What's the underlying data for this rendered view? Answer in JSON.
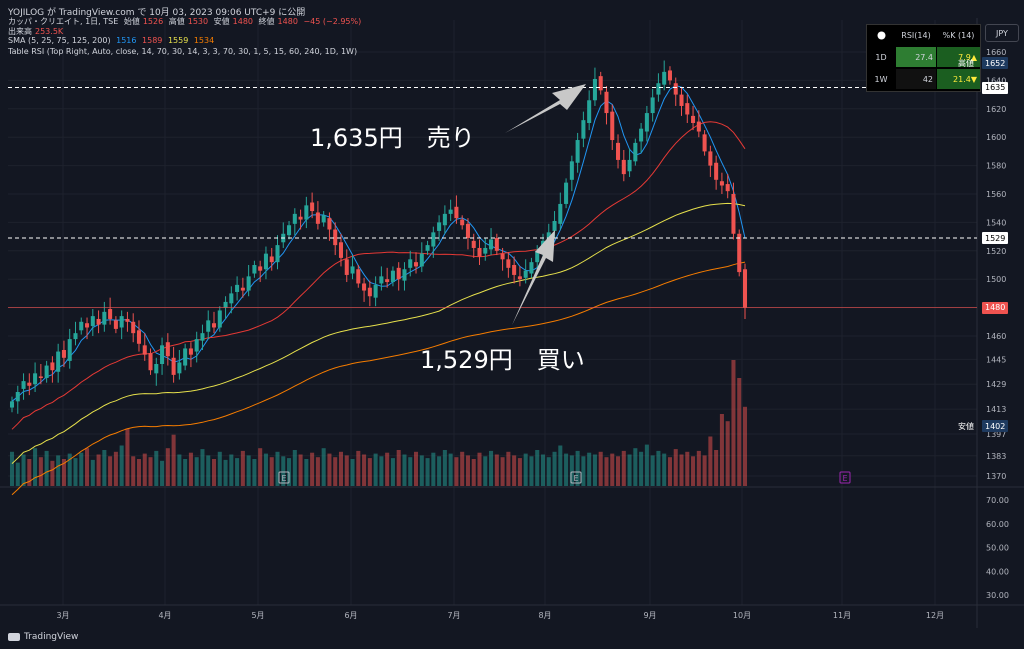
{
  "header": {
    "published": "YOJILOG が TradingView.com で 10月 03, 2023 09:06 UTC+9 に公開",
    "symbol": "カッパ・クリエイト, 1日, TSE",
    "open_label": "始値",
    "open": "1526",
    "high_label": "高値",
    "high": "1530",
    "low_label": "安値",
    "low": "1480",
    "close_label": "終値",
    "close": "1480",
    "change": "−45 (−2.95%)",
    "volume_label": "出来高",
    "volume": "253.5K",
    "sma_label": "SMA (5, 25, 75, 125, 200)",
    "sma_values": [
      "1516",
      "1589",
      "1559",
      "1534"
    ],
    "rsi_table_label": "Table RSI (Top Right, Auto, close, 14, 70, 30, 14, 3, 3, 70, 30, 1, 5, 15, 60, 240, 1D, 1W)"
  },
  "rsi_table": {
    "headers": [
      "RSI(14)",
      "%K (14)"
    ],
    "rows": [
      {
        "tf": "1D",
        "rsi": "27.4",
        "k": "7.9▲"
      },
      {
        "tf": "1W",
        "rsi": "42",
        "k": "21.4▼"
      }
    ]
  },
  "currency": "JPY",
  "annotations": {
    "sell": "1,635円　売り",
    "buy": "1,529円　買い"
  },
  "footer": {
    "brand": "TradingView"
  },
  "colors": {
    "bg": "#131722",
    "up": "#26a69a",
    "down": "#ef5350",
    "sma5": "#2196f3",
    "sma25": "#e53935",
    "sma75": "#e6e04c",
    "sma125": "#f57c00",
    "grid": "#1e222d"
  },
  "chart_data": {
    "type": "candlestick",
    "x_labels": [
      "3月",
      "4月",
      "5月",
      "6月",
      "7月",
      "8月",
      "9月",
      "10月",
      "11月",
      "12月"
    ],
    "y_ticks": [
      1370,
      1383,
      1397,
      1413,
      1429,
      1445,
      1460,
      1480,
      1500,
      1520,
      1540,
      1560,
      1580,
      1600,
      1620,
      1640,
      1660
    ],
    "price_labels": [
      {
        "text": "高値",
        "value": "1652"
      },
      {
        "text": "",
        "value": "1635"
      },
      {
        "text": "",
        "value": "1529"
      },
      {
        "text": "",
        "value": "1480"
      },
      {
        "text": "安値",
        "value": "1402"
      }
    ],
    "reference_lines": [
      1635,
      1529,
      1480
    ],
    "closes": [
      1418,
      1424,
      1431,
      1428,
      1436,
      1433,
      1441,
      1438,
      1450,
      1446,
      1458,
      1462,
      1470,
      1466,
      1474,
      1468,
      1477,
      1472,
      1465,
      1474,
      1470,
      1462,
      1455,
      1448,
      1438,
      1442,
      1454,
      1447,
      1435,
      1443,
      1452,
      1448,
      1458,
      1462,
      1471,
      1466,
      1478,
      1484,
      1490,
      1496,
      1492,
      1502,
      1510,
      1506,
      1518,
      1512,
      1524,
      1532,
      1538,
      1546,
      1542,
      1552,
      1548,
      1539,
      1545,
      1535,
      1524,
      1515,
      1503,
      1509,
      1497,
      1492,
      1488,
      1496,
      1502,
      1498,
      1506,
      1500,
      1507,
      1514,
      1509,
      1518,
      1524,
      1533,
      1540,
      1546,
      1549,
      1543,
      1538,
      1529,
      1522,
      1516,
      1522,
      1528,
      1520,
      1514,
      1508,
      1503,
      1500,
      1506,
      1512,
      1520,
      1527,
      1533,
      1541,
      1553,
      1568,
      1583,
      1598,
      1612,
      1626,
      1641,
      1633,
      1617,
      1598,
      1584,
      1574,
      1584,
      1596,
      1606,
      1617,
      1628,
      1638,
      1646,
      1640,
      1630,
      1622,
      1616,
      1610,
      1604,
      1590,
      1580,
      1570,
      1566,
      1562,
      1532,
      1505,
      1480
    ],
    "volumes": [
      38,
      26,
      35,
      30,
      42,
      32,
      39,
      28,
      34,
      30,
      36,
      31,
      37,
      42,
      29,
      35,
      40,
      33,
      38,
      45,
      64,
      33,
      30,
      36,
      32,
      39,
      28,
      42,
      57,
      35,
      30,
      37,
      32,
      41,
      34,
      30,
      38,
      29,
      35,
      31,
      39,
      34,
      30,
      42,
      36,
      32,
      38,
      33,
      31,
      40,
      35,
      30,
      37,
      32,
      42,
      36,
      32,
      38,
      34,
      30,
      39,
      35,
      31,
      36,
      33,
      37,
      31,
      40,
      35,
      32,
      38,
      34,
      31,
      37,
      33,
      40,
      36,
      32,
      38,
      34,
      30,
      37,
      33,
      39,
      35,
      32,
      38,
      34,
      31,
      36,
      33,
      40,
      35,
      32,
      38,
      45,
      36,
      34,
      39,
      33,
      37,
      35,
      38,
      32,
      36,
      33,
      39,
      35,
      42,
      38,
      46,
      34,
      39,
      36,
      32,
      41,
      35,
      38,
      33,
      39,
      34,
      55,
      40,
      80,
      72,
      140,
      120,
      88
    ],
    "volume_axis": {
      "ticks": [
        30,
        40,
        50,
        60,
        70
      ]
    },
    "earnings_markers": [
      "E",
      "E",
      "E"
    ]
  }
}
